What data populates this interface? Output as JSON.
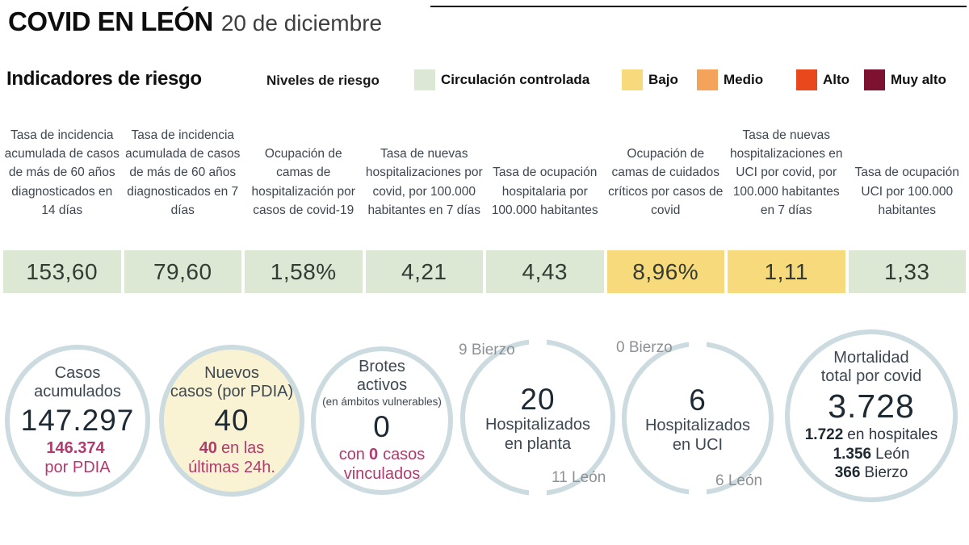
{
  "header": {
    "title": "COVID EN LEÓN",
    "date": "20 de diciembre"
  },
  "risk": {
    "section_title": "Indicadores de riesgo",
    "legend_title": "Niveles de riesgo",
    "levels": [
      {
        "label": "Circulación controlada",
        "color": "#dce8d4"
      },
      {
        "label": "Bajo",
        "color": "#f7da7b"
      },
      {
        "label": "Medio",
        "color": "#f4a45a"
      },
      {
        "label": "Alto",
        "color": "#e8481c"
      },
      {
        "label": "Muy alto",
        "color": "#7c1230"
      }
    ],
    "indicators": [
      {
        "label": "Tasa de incidencia acumulada de casos de más de 60 años diagnosticados en 14 días",
        "value": "153,60",
        "level": "Circulación controlada"
      },
      {
        "label": "Tasa de incidencia acumulada de casos de más de 60 años diagnosticados en 7 días",
        "value": "79,60",
        "level": "Circulación controlada"
      },
      {
        "label": "Ocupación de camas de hospitalización por casos de covid-19",
        "value": "1,58%",
        "level": "Circulación controlada"
      },
      {
        "label": "Tasa de nuevas hospitalizaciones por covid, por 100.000 habitantes en 7 días",
        "value": "4,21",
        "level": "Circulación controlada"
      },
      {
        "label": "Tasa de ocupación hospitalaria por 100.000 habitantes",
        "value": "4,43",
        "level": "Circulación controlada"
      },
      {
        "label": "Ocupación de camas de cuidados críticos por casos de covid",
        "value": "8,96%",
        "level": "Bajo"
      },
      {
        "label": "Tasa de nuevas hospitalizaciones en UCI por covid, por 100.000 habitantes en 7 días",
        "value": "1,11",
        "level": "Bajo"
      },
      {
        "label": "Tasa de ocupación UCI por 100.000 habitantes",
        "value": "1,33",
        "level": "Circulación controlada"
      }
    ]
  },
  "stats": {
    "casos": {
      "title_line1": "Casos",
      "title_line2": "acumulados",
      "value": "147.297",
      "sub_num": "146.374",
      "sub_line2": "por PDIA"
    },
    "nuevos": {
      "title_line1": "Nuevos",
      "title_line2": "casos (por PDIA)",
      "value": "40",
      "sub_num": "40",
      "sub_text": "en las",
      "sub_line2": "últimas 24h."
    },
    "brotes": {
      "title_line1": "Brotes",
      "title_line2": "activos",
      "subtitle": "(en ámbitos vulnerables)",
      "value": "0",
      "sub_pre": "con",
      "sub_num": "0",
      "sub_post": "casos",
      "sub_line2": "vinculados"
    },
    "planta": {
      "top_label": "9 Bierzo",
      "value": "20",
      "label_line1": "Hospitalizados",
      "label_line2": "en planta",
      "bottom_label": "11 León"
    },
    "uci": {
      "top_label": "0 Bierzo",
      "value": "6",
      "label_line1": "Hospitalizados",
      "label_line2": "en UCI",
      "bottom_label": "6 León"
    },
    "mortalidad": {
      "title_line1": "Mortalidad",
      "title_line2": "total por covid",
      "value": "3.728",
      "lines": [
        {
          "num": "1.722",
          "text": "en hospitales"
        },
        {
          "num": "1.356",
          "text": "León"
        },
        {
          "num": "366",
          "text": "Bierzo"
        }
      ]
    }
  },
  "chart_data": {
    "type": "table",
    "title": "COVID EN LEÓN — Indicadores de riesgo — 20 de diciembre",
    "categories": [
      "Tasa de incidencia acumulada de casos de más de 60 años diagnosticados en 14 días",
      "Tasa de incidencia acumulada de casos de más de 60 años diagnosticados en 7 días",
      "Ocupación de camas de hospitalización por casos de covid-19",
      "Tasa de nuevas hospitalizaciones por covid, por 100.000 habitantes en 7 días",
      "Tasa de ocupación hospitalaria por 100.000 habitantes",
      "Ocupación de camas de cuidados críticos por casos de covid",
      "Tasa de nuevas hospitalizaciones en UCI por covid, por 100.000 habitantes en 7 días",
      "Tasa de ocupación UCI por 100.000 habitantes"
    ],
    "values": [
      153.6,
      79.6,
      1.58,
      4.21,
      4.43,
      8.96,
      1.11,
      1.33
    ],
    "units": [
      "",
      "",
      "%",
      "",
      "",
      "%",
      "",
      ""
    ],
    "risk_levels": [
      "Circulación controlada",
      "Circulación controlada",
      "Circulación controlada",
      "Circulación controlada",
      "Circulación controlada",
      "Bajo",
      "Bajo",
      "Circulación controlada"
    ],
    "key_figures": {
      "casos_acumulados": 147297,
      "casos_por_pdia": 146374,
      "nuevos_casos_pdia": 40,
      "nuevos_casos_ultimas_24h": 40,
      "brotes_activos": 0,
      "brotes_casos_vinculados": 0,
      "hospitalizados_planta": {
        "total": 20,
        "bierzo": 9,
        "leon": 11
      },
      "hospitalizados_uci": {
        "total": 6,
        "bierzo": 0,
        "leon": 6
      },
      "mortalidad_total": 3728,
      "mortalidad_hospitales": 1722,
      "mortalidad_leon": 1356,
      "mortalidad_bierzo": 366
    }
  }
}
